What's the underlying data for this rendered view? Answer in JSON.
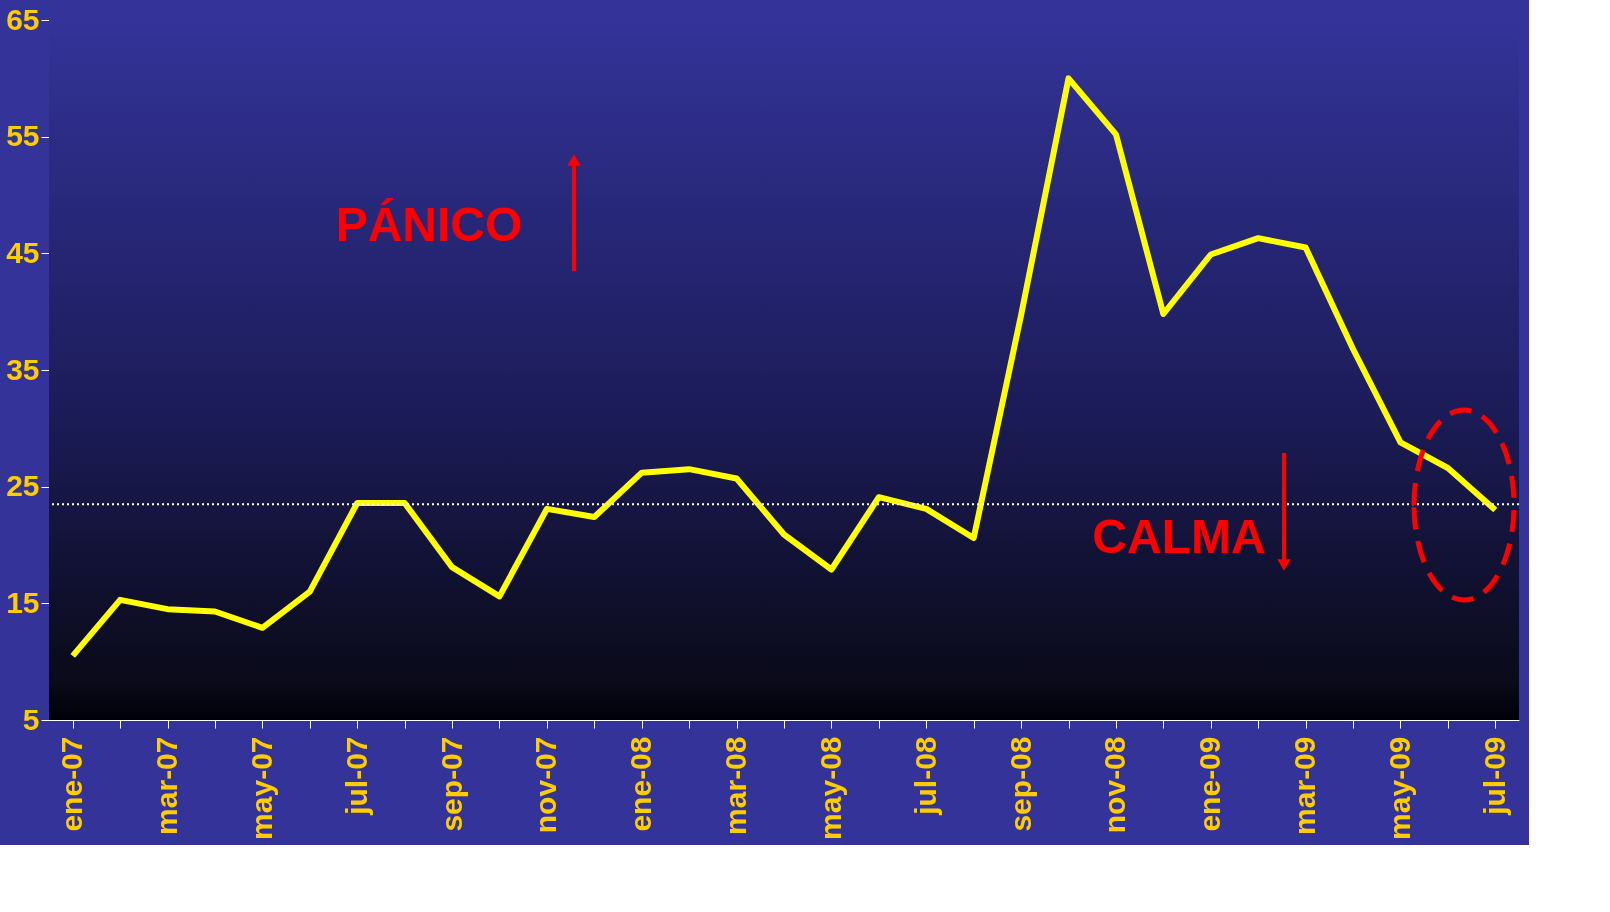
{
  "chart_data": {
    "type": "line",
    "categories": [
      "ene-07",
      null,
      "mar-07",
      null,
      "may-07",
      null,
      "jul-07",
      null,
      "sep-07",
      null,
      "nov-07",
      null,
      "ene-08",
      null,
      "mar-08",
      null,
      "may-08",
      null,
      "jul-08",
      null,
      "sep-08",
      null,
      "nov-08",
      null,
      "ene-09",
      null,
      "mar-09",
      null,
      "may-09",
      null,
      "jul-09"
    ],
    "series": [
      {
        "color": "#ffff00",
        "values": [
          10.5,
          15.3,
          14.5,
          14.3,
          12.9,
          16.0,
          23.6,
          23.6,
          18.1,
          15.6,
          23.1,
          22.4,
          26.2,
          26.5,
          25.7,
          20.9,
          17.9,
          24.1,
          23.1,
          20.6,
          39.7,
          60.0,
          55.2,
          39.8,
          44.9,
          46.3,
          45.5,
          36.8,
          28.8,
          26.6,
          23.0
        ]
      }
    ],
    "ylim": [
      5,
      65
    ],
    "yticks": [
      5,
      15,
      25,
      35,
      45,
      55,
      65
    ],
    "ref_lines": [
      {
        "axis": "y",
        "value": 23.5,
        "color": "#ffffff",
        "line_style": "dotted"
      }
    ],
    "annotations": [
      "PÁNICO",
      "CALMA"
    ],
    "grid": false,
    "marker": "none",
    "line_style": "solid"
  }
}
